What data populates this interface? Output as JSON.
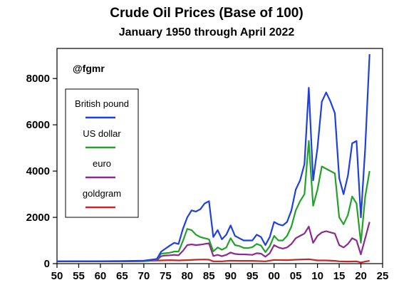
{
  "chart_data": {
    "type": "line",
    "title": "Crude Oil Prices (Base of 100)",
    "subtitle": "January 1950 through April 2022",
    "annotation": "@fgmr",
    "x_tick_labels": [
      "50",
      "55",
      "60",
      "65",
      "70",
      "75",
      "80",
      "85",
      "90",
      "95",
      "00",
      "05",
      "10",
      "15",
      "20",
      "25"
    ],
    "y_tick_labels": [
      "0",
      "2000",
      "4000",
      "6000",
      "8000"
    ],
    "x_range_year": [
      1950,
      2025
    ],
    "ylim": [
      0,
      9300
    ],
    "y_ticks": [
      0,
      2000,
      4000,
      6000,
      8000
    ],
    "grid": false,
    "legend_position": "left",
    "series": [
      {
        "name": "British pound",
        "color": "#1f3fe0",
        "points": [
          [
            1950,
            100
          ],
          [
            1955,
            105
          ],
          [
            1960,
            105
          ],
          [
            1965,
            110
          ],
          [
            1970,
            130
          ],
          [
            1973,
            200
          ],
          [
            1974,
            520
          ],
          [
            1975,
            650
          ],
          [
            1976,
            780
          ],
          [
            1977,
            900
          ],
          [
            1978,
            850
          ],
          [
            1979,
            1500
          ],
          [
            1980,
            2000
          ],
          [
            1981,
            2300
          ],
          [
            1982,
            2250
          ],
          [
            1983,
            2350
          ],
          [
            1984,
            2600
          ],
          [
            1985,
            2700
          ],
          [
            1986,
            1150
          ],
          [
            1987,
            1450
          ],
          [
            1988,
            1050
          ],
          [
            1989,
            1250
          ],
          [
            1990,
            1650
          ],
          [
            1991,
            1200
          ],
          [
            1992,
            1100
          ],
          [
            1993,
            1000
          ],
          [
            1994,
            1000
          ],
          [
            1995,
            1000
          ],
          [
            1996,
            1250
          ],
          [
            1997,
            1150
          ],
          [
            1998,
            800
          ],
          [
            1999,
            1150
          ],
          [
            2000,
            1800
          ],
          [
            2001,
            1700
          ],
          [
            2002,
            1650
          ],
          [
            2003,
            1800
          ],
          [
            2004,
            2300
          ],
          [
            2005,
            3200
          ],
          [
            2006,
            3600
          ],
          [
            2007,
            4300
          ],
          [
            2008,
            7600
          ],
          [
            2009,
            3600
          ],
          [
            2010,
            5000
          ],
          [
            2011,
            7000
          ],
          [
            2012,
            7400
          ],
          [
            2013,
            7000
          ],
          [
            2014,
            6500
          ],
          [
            2015,
            3700
          ],
          [
            2016,
            3000
          ],
          [
            2017,
            3800
          ],
          [
            2018,
            5200
          ],
          [
            2019,
            5300
          ],
          [
            2020,
            2000
          ],
          [
            2021,
            5000
          ],
          [
            2022,
            9050
          ]
        ]
      },
      {
        "name": "US dollar",
        "color": "#22a22a",
        "points": [
          [
            1950,
            100
          ],
          [
            1955,
            105
          ],
          [
            1960,
            100
          ],
          [
            1965,
            100
          ],
          [
            1970,
            110
          ],
          [
            1973,
            180
          ],
          [
            1974,
            430
          ],
          [
            1975,
            450
          ],
          [
            1976,
            470
          ],
          [
            1977,
            520
          ],
          [
            1978,
            520
          ],
          [
            1979,
            980
          ],
          [
            1980,
            1500
          ],
          [
            1981,
            1450
          ],
          [
            1982,
            1250
          ],
          [
            1983,
            1150
          ],
          [
            1984,
            1100
          ],
          [
            1985,
            1050
          ],
          [
            1986,
            530
          ],
          [
            1987,
            700
          ],
          [
            1988,
            600
          ],
          [
            1989,
            700
          ],
          [
            1990,
            1100
          ],
          [
            1991,
            800
          ],
          [
            1992,
            760
          ],
          [
            1993,
            680
          ],
          [
            1994,
            670
          ],
          [
            1995,
            710
          ],
          [
            1996,
            850
          ],
          [
            1997,
            780
          ],
          [
            1998,
            500
          ],
          [
            1999,
            750
          ],
          [
            2000,
            1200
          ],
          [
            2001,
            1000
          ],
          [
            2002,
            1000
          ],
          [
            2003,
            1200
          ],
          [
            2004,
            1600
          ],
          [
            2005,
            2300
          ],
          [
            2006,
            2700
          ],
          [
            2007,
            3000
          ],
          [
            2008,
            5300
          ],
          [
            2009,
            2500
          ],
          [
            2010,
            3200
          ],
          [
            2011,
            4200
          ],
          [
            2012,
            4100
          ],
          [
            2013,
            4000
          ],
          [
            2014,
            3900
          ],
          [
            2015,
            2000
          ],
          [
            2016,
            1700
          ],
          [
            2017,
            2100
          ],
          [
            2018,
            2900
          ],
          [
            2019,
            2600
          ],
          [
            2020,
            900
          ],
          [
            2021,
            2900
          ],
          [
            2022,
            4000
          ]
        ]
      },
      {
        "name": "euro",
        "color": "#8b2a8f",
        "points": [
          [
            1950,
            100
          ],
          [
            1955,
            105
          ],
          [
            1960,
            100
          ],
          [
            1965,
            100
          ],
          [
            1970,
            105
          ],
          [
            1973,
            150
          ],
          [
            1974,
            320
          ],
          [
            1975,
            350
          ],
          [
            1976,
            360
          ],
          [
            1977,
            380
          ],
          [
            1978,
            360
          ],
          [
            1979,
            550
          ],
          [
            1980,
            800
          ],
          [
            1981,
            830
          ],
          [
            1982,
            800
          ],
          [
            1983,
            820
          ],
          [
            1984,
            850
          ],
          [
            1985,
            880
          ],
          [
            1986,
            330
          ],
          [
            1987,
            380
          ],
          [
            1988,
            320
          ],
          [
            1989,
            380
          ],
          [
            1990,
            480
          ],
          [
            1991,
            420
          ],
          [
            1992,
            400
          ],
          [
            1993,
            400
          ],
          [
            1994,
            390
          ],
          [
            1995,
            380
          ],
          [
            1996,
            450
          ],
          [
            1997,
            430
          ],
          [
            1998,
            300
          ],
          [
            1999,
            450
          ],
          [
            2000,
            800
          ],
          [
            2001,
            700
          ],
          [
            2002,
            650
          ],
          [
            2003,
            700
          ],
          [
            2004,
            850
          ],
          [
            2005,
            1100
          ],
          [
            2006,
            1200
          ],
          [
            2007,
            1300
          ],
          [
            2008,
            1600
          ],
          [
            2009,
            900
          ],
          [
            2010,
            1200
          ],
          [
            2011,
            1350
          ],
          [
            2012,
            1400
          ],
          [
            2013,
            1350
          ],
          [
            2014,
            1300
          ],
          [
            2015,
            800
          ],
          [
            2016,
            700
          ],
          [
            2017,
            850
          ],
          [
            2018,
            1100
          ],
          [
            2019,
            1000
          ],
          [
            2020,
            400
          ],
          [
            2021,
            1100
          ],
          [
            2022,
            1800
          ]
        ]
      },
      {
        "name": "goldgram",
        "color": "#c0282a",
        "points": [
          [
            1950,
            100
          ],
          [
            1955,
            105
          ],
          [
            1960,
            100
          ],
          [
            1965,
            100
          ],
          [
            1970,
            110
          ],
          [
            1972,
            130
          ],
          [
            1974,
            140
          ],
          [
            1976,
            150
          ],
          [
            1978,
            140
          ],
          [
            1980,
            150
          ],
          [
            1982,
            170
          ],
          [
            1984,
            180
          ],
          [
            1985,
            170
          ],
          [
            1986,
            100
          ],
          [
            1988,
            100
          ],
          [
            1990,
            130
          ],
          [
            1992,
            120
          ],
          [
            1995,
            120
          ],
          [
            1998,
            100
          ],
          [
            2000,
            160
          ],
          [
            2003,
            150
          ],
          [
            2005,
            170
          ],
          [
            2008,
            190
          ],
          [
            2010,
            140
          ],
          [
            2012,
            140
          ],
          [
            2014,
            120
          ],
          [
            2015,
            100
          ],
          [
            2017,
            90
          ],
          [
            2019,
            100
          ],
          [
            2020,
            50
          ],
          [
            2021,
            90
          ],
          [
            2022,
            120
          ]
        ]
      }
    ]
  }
}
